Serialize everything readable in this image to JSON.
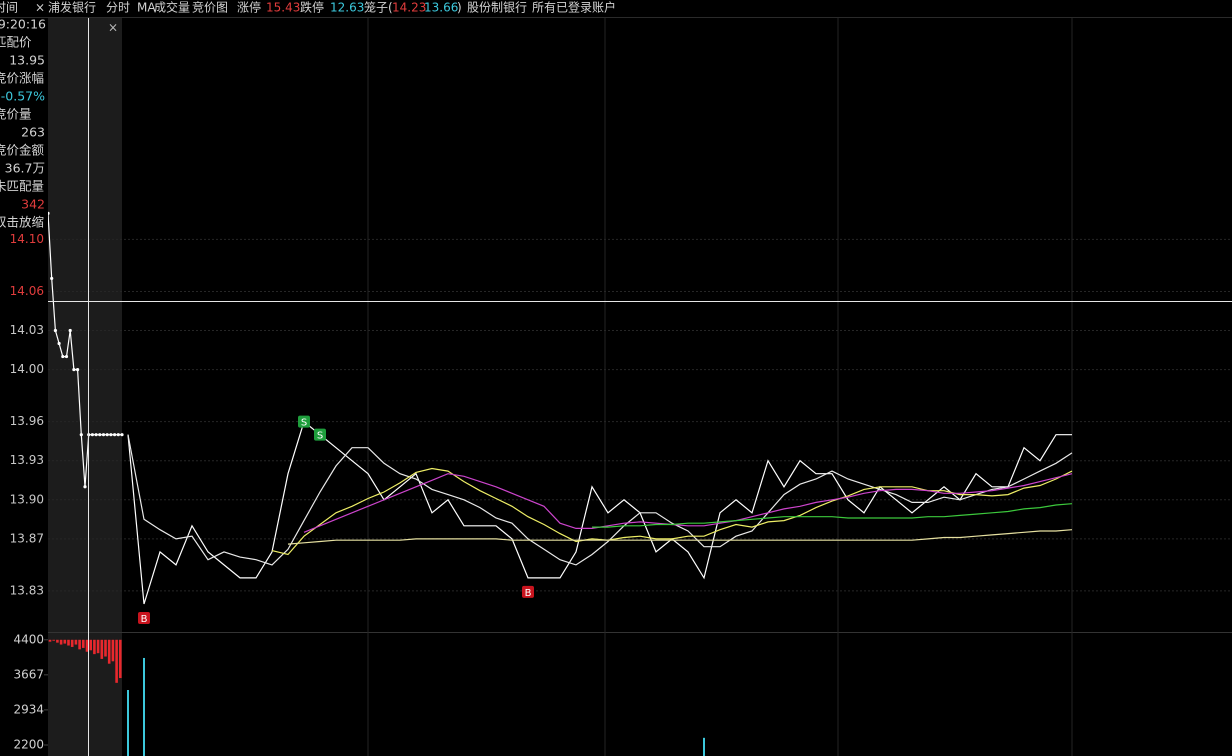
{
  "toolbar": {
    "time_label": "时间",
    "close": "×",
    "stock": "浦发银行",
    "tabs": [
      "分时",
      "MA",
      "成交量",
      "竞价图"
    ],
    "limit_up_label": "涨停",
    "limit_up": 15.43,
    "limit_down_label": "跌停",
    "limit_down": 12.63,
    "cage_label": "笼子(",
    "cage_high": 14.23,
    "cage_low": 13.66,
    "cage_close": ")",
    "sector": "股份制银行",
    "account": "所有已登录账户"
  },
  "sidebar": {
    "time": "9:20:16",
    "match_price_label": "匹配价",
    "match_price": 13.95,
    "change_label": "竞价涨幅",
    "change": "-0.57%",
    "volume_label": "竞价量",
    "volume": 263,
    "amount_label": "竞价金额",
    "amount": "36.7万",
    "unmatched_label": "未匹配量",
    "unmatched": 342,
    "zoom_hint": "双击放缩",
    "close": "×"
  },
  "chart_data": [
    {
      "type": "line",
      "ylim": [
        13.8,
        14.27
      ],
      "yticks": [
        {
          "value": 14.1,
          "label": "14.10"
        },
        14.06,
        14.03,
        {
          "value": 14,
          "label": "14.00"
        },
        13.96,
        13.93,
        {
          "value": 13.9,
          "label": "13.90"
        },
        13.87,
        13.83
      ],
      "ytick_colors": [
        "#e03c3c",
        "#e03c3c",
        "#c8c8c8",
        "#c8c8c8",
        "#c8c8c8",
        "#c8c8c8",
        "#c8c8c8",
        "#c8c8c8",
        "#c8c8c8"
      ],
      "grid": true,
      "series": [
        {
          "color": "#ffffff",
          "values": [
            13.95,
            13.82,
            13.86,
            13.85,
            13.88,
            13.86,
            13.85,
            13.84,
            13.84,
            13.86,
            13.92,
            13.96,
            13.95,
            13.94,
            13.93,
            13.92,
            13.9,
            13.91,
            13.92,
            13.89,
            13.9,
            13.88,
            13.88,
            13.88,
            13.87,
            13.84,
            13.84,
            13.84,
            13.86,
            13.91,
            13.89,
            13.9,
            13.89,
            13.86,
            13.87,
            13.86,
            13.84,
            13.89,
            13.9,
            13.89,
            13.93,
            13.91,
            13.93,
            13.92,
            13.92,
            13.9,
            13.89,
            13.91,
            13.9,
            13.89,
            13.9,
            13.91,
            13.9,
            13.92,
            13.91,
            13.91,
            13.94,
            13.93,
            13.95,
            13.95
          ]
        },
        {
          "color": "#e8e8e8",
          "values": [
            13.95,
            13.885,
            13.877,
            13.87,
            13.872,
            13.854,
            13.86,
            13.856,
            13.854,
            13.85,
            13.862,
            13.884,
            13.906,
            13.926,
            13.94,
            13.94,
            13.928,
            13.92,
            13.916,
            13.908,
            13.904,
            13.9,
            13.894,
            13.886,
            13.882,
            13.87,
            13.862,
            13.854,
            13.85,
            13.858,
            13.868,
            13.88,
            13.89,
            13.89,
            13.882,
            13.876,
            13.864,
            13.864,
            13.872,
            13.876,
            13.89,
            13.904,
            13.912,
            13.916,
            13.922,
            13.916,
            13.912,
            13.908,
            13.904,
            13.898,
            13.898,
            13.902,
            13.9,
            13.904,
            13.908,
            13.91,
            13.916,
            13.922,
            13.928,
            13.936
          ]
        },
        {
          "color": "#eeee66",
          "values": [
            null,
            null,
            null,
            null,
            null,
            null,
            null,
            null,
            null,
            13.861,
            13.858,
            13.872,
            13.881,
            13.89,
            13.895,
            13.901,
            13.906,
            13.913,
            13.921,
            13.924,
            13.922,
            13.914,
            13.907,
            13.901,
            13.895,
            13.887,
            13.881,
            13.874,
            13.868,
            13.87,
            13.869,
            13.871,
            13.872,
            13.87,
            13.87,
            13.872,
            13.872,
            13.877,
            13.881,
            13.879,
            13.883,
            13.884,
            13.888,
            13.894,
            13.899,
            13.903,
            13.908,
            13.91,
            13.91,
            13.91,
            13.907,
            13.907,
            13.904,
            13.904,
            13.903,
            13.904,
            13.909,
            13.911,
            13.916,
            13.922
          ]
        },
        {
          "color": "#cc44cc",
          "values": [
            null,
            null,
            null,
            null,
            null,
            null,
            null,
            null,
            null,
            null,
            null,
            13.875,
            13.88,
            13.885,
            13.89,
            13.895,
            13.9,
            13.905,
            13.91,
            13.915,
            13.92,
            13.918,
            13.914,
            13.91,
            13.905,
            13.9,
            13.895,
            13.882,
            13.878,
            13.878,
            13.88,
            13.882,
            13.883,
            13.882,
            13.881,
            13.88,
            13.88,
            13.882,
            13.884,
            13.887,
            13.89,
            13.893,
            13.895,
            13.898,
            13.9,
            13.902,
            13.905,
            13.907,
            13.908,
            13.908,
            13.907,
            13.905,
            13.905,
            13.906,
            13.907,
            13.909,
            13.911,
            13.914,
            13.917,
            13.92
          ]
        },
        {
          "color": "#3cc83c",
          "values": [
            null,
            null,
            null,
            null,
            null,
            null,
            null,
            null,
            null,
            null,
            null,
            null,
            null,
            null,
            null,
            null,
            null,
            null,
            null,
            null,
            null,
            null,
            null,
            null,
            null,
            null,
            null,
            null,
            null,
            13.879,
            13.879,
            13.88,
            13.88,
            13.881,
            13.881,
            13.882,
            13.882,
            13.883,
            13.884,
            13.885,
            13.886,
            13.887,
            13.887,
            13.887,
            13.887,
            13.886,
            13.886,
            13.886,
            13.886,
            13.886,
            13.887,
            13.887,
            13.888,
            13.889,
            13.89,
            13.891,
            13.893,
            13.894,
            13.896,
            13.897
          ]
        },
        {
          "color": "#e6e0a0",
          "values": [
            null,
            null,
            null,
            null,
            null,
            null,
            null,
            null,
            null,
            null,
            13.866,
            13.867,
            13.868,
            13.869,
            13.869,
            13.869,
            13.869,
            13.869,
            13.87,
            13.87,
            13.87,
            13.87,
            13.87,
            13.87,
            13.869,
            13.869,
            13.869,
            13.869,
            13.869,
            13.869,
            13.869,
            13.869,
            13.869,
            13.869,
            13.869,
            13.869,
            13.869,
            13.869,
            13.869,
            13.869,
            13.869,
            13.869,
            13.869,
            13.869,
            13.869,
            13.869,
            13.869,
            13.869,
            13.869,
            13.869,
            13.87,
            13.871,
            13.871,
            13.872,
            13.873,
            13.874,
            13.875,
            13.876,
            13.876,
            13.877
          ]
        }
      ],
      "signals": [
        {
          "label": "B",
          "x": 1,
          "color": "#c8141e"
        },
        {
          "label": "S",
          "x": 11,
          "color": "#1e9e3c"
        },
        {
          "label": "S",
          "x": 12,
          "color": "#1e9e3c"
        },
        {
          "label": "B",
          "x": 25,
          "color": "#c8141e"
        }
      ]
    },
    {
      "type": "line",
      "ylim": [
        13.8,
        14.27
      ],
      "color": "#ffffff",
      "values": [
        14.12,
        14.07,
        14.03,
        14.02,
        14.01,
        14.01,
        14.03,
        14.0,
        14.0,
        13.95,
        13.91,
        13.95,
        13.95,
        13.95,
        13.95,
        13.95,
        13.95,
        13.95,
        13.95,
        13.95,
        13.95
      ]
    },
    {
      "type": "bar",
      "ylim": [
        1970,
        4500
      ],
      "yticks": [
        4400,
        3667,
        2934,
        2200
      ],
      "series": [
        {
          "color": "#e8282d",
          "base": 4400,
          "values": [
            4360,
            4380,
            4340,
            4300,
            4320,
            4280,
            4250,
            4300,
            4200,
            4230,
            4150,
            4180,
            4100,
            4120,
            4000,
            4050,
            3900,
            3950,
            3500,
            3600
          ]
        },
        {
          "color": "#3cc8dc",
          "x": [
            0,
            1,
            36
          ],
          "values": [
            3350,
            4020,
            2350
          ]
        }
      ]
    }
  ]
}
